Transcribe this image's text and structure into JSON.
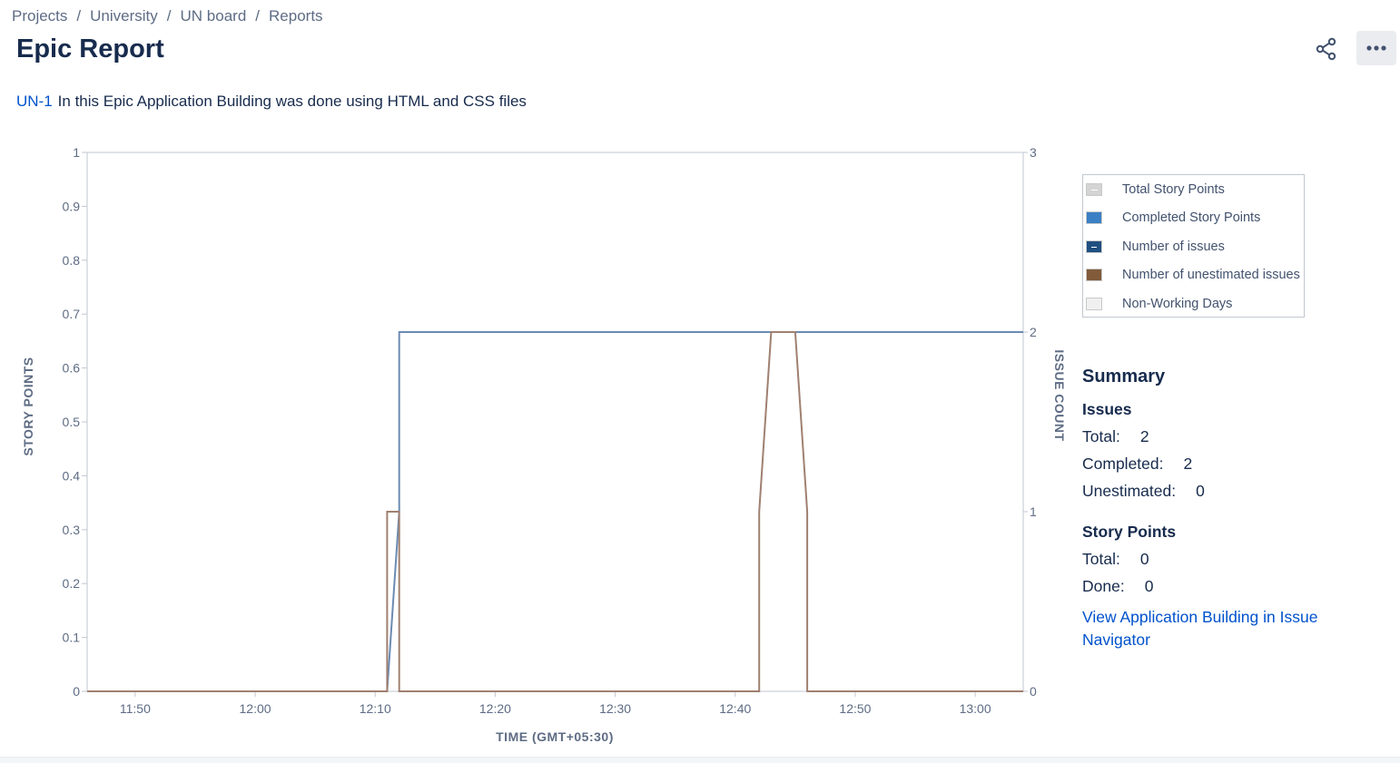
{
  "breadcrumb": [
    "Projects",
    "University",
    "UN board",
    "Reports"
  ],
  "page_title": "Epic Report",
  "epic": {
    "key": "UN-1",
    "description": "In this Epic Application Building was done using HTML and CSS files"
  },
  "icons": {
    "share": "share-icon",
    "more": "more-icon"
  },
  "chart_data": {
    "type": "line",
    "xlabel": "TIME (GMT+05:30)",
    "ylabel_left": "STORY POINTS",
    "ylabel_right": "ISSUE COUNT",
    "x_ticks": [
      "11:50",
      "12:00",
      "12:10",
      "12:20",
      "12:30",
      "12:40",
      "12:50",
      "13:00"
    ],
    "x_range": [
      "11:46",
      "13:04"
    ],
    "y_left_ticks": [
      "0",
      "0.1",
      "0.2",
      "0.3",
      "0.4",
      "0.5",
      "0.6",
      "0.7",
      "0.8",
      "0.9",
      "1"
    ],
    "y_left_range": [
      0,
      1
    ],
    "y_right_ticks": [
      "0",
      "1",
      "2",
      "3"
    ],
    "y_right_range": [
      0,
      3
    ],
    "series": [
      {
        "name": "Number of issues",
        "color": "#6b8bb3",
        "axis": "right",
        "points": [
          [
            "12:11",
            0
          ],
          [
            "12:12",
            1
          ],
          [
            "12:12",
            2
          ],
          [
            "13:04",
            2
          ]
        ]
      },
      {
        "name": "Number of unestimated issues",
        "color": "#a08070",
        "axis": "right",
        "points": [
          [
            "11:46",
            0
          ],
          [
            "12:11",
            0
          ],
          [
            "12:11",
            1
          ],
          [
            "12:12",
            1
          ],
          [
            "12:12",
            0
          ],
          [
            "12:42",
            0
          ],
          [
            "12:42",
            1
          ],
          [
            "12:43",
            2
          ],
          [
            "12:45",
            2
          ],
          [
            "12:46",
            1
          ],
          [
            "12:46",
            0
          ],
          [
            "13:04",
            0
          ]
        ]
      }
    ],
    "legend_position": "right"
  },
  "legend": [
    {
      "label": "Total Story Points",
      "color": "#d4d4d4"
    },
    {
      "label": "Completed Story Points",
      "color": "#3b7fc4"
    },
    {
      "label": "Number of issues",
      "color": "#205081"
    },
    {
      "label": "Number of unestimated issues",
      "color": "#815b3a"
    },
    {
      "label": "Non-Working Days",
      "color": "#f0f0f0"
    }
  ],
  "summary": {
    "title": "Summary",
    "issues_heading": "Issues",
    "issues": [
      {
        "label": "Total:",
        "value": "2"
      },
      {
        "label": "Completed:",
        "value": "2"
      },
      {
        "label": "Unestimated:",
        "value": "0"
      }
    ],
    "story_points_heading": "Story Points",
    "story_points": [
      {
        "label": "Total:",
        "value": "0"
      },
      {
        "label": "Done:",
        "value": "0"
      }
    ],
    "navigator_link": "View Application Building in Issue Navigator"
  }
}
